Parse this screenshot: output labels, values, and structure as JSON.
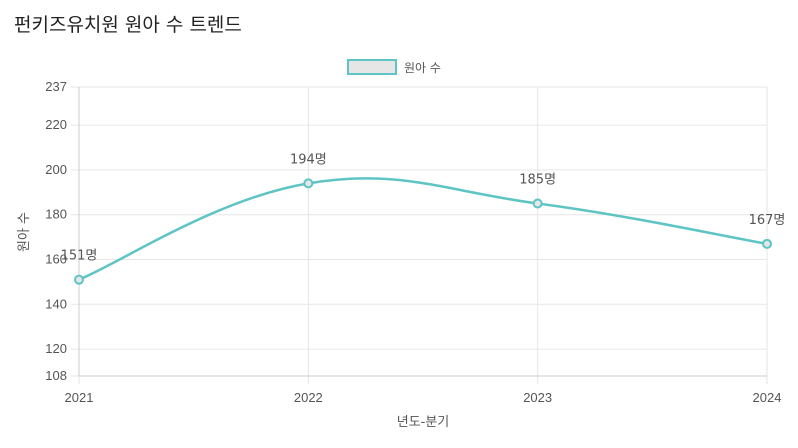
{
  "title": "펀키즈유치원 원아 수 트렌드",
  "legend": {
    "label": "원아 수"
  },
  "colors": {
    "line": "#5ec4c4",
    "legend_fill": "#e6e6e6",
    "grid": "#e6e6e6",
    "axis": "#cccccc",
    "text": "#555555"
  },
  "chart_data": {
    "type": "line",
    "title": "펀키즈유치원 원아 수 트렌드",
    "xlabel": "년도-분기",
    "ylabel": "원아 수",
    "categories": [
      "2021",
      "2022",
      "2023",
      "2024"
    ],
    "series": [
      {
        "name": "원아 수",
        "values": [
          151,
          194,
          185,
          167
        ]
      }
    ],
    "data_labels": [
      "151명",
      "194명",
      "185명",
      "167명"
    ],
    "ylim": [
      108,
      237
    ],
    "yticks": [
      108,
      120,
      140,
      160,
      180,
      200,
      220,
      237
    ],
    "grid": true,
    "legend_position": "top-center"
  }
}
